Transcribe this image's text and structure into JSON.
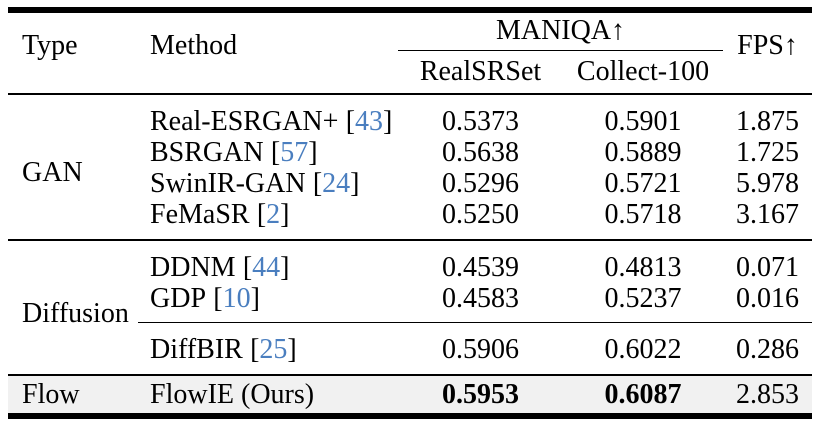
{
  "table": {
    "header": {
      "type": "Type",
      "method": "Method",
      "maniqa": "MANIQA↑",
      "realsrset": "RealSRSet",
      "collect100": "Collect-100",
      "fps": "FPS↑"
    },
    "cite_open": "[",
    "cite_close": "]",
    "colors": {
      "citation_blue": "#4a7ebf",
      "highlight_row_bg": "#f1f1f1",
      "rule_black": "#000000"
    },
    "sections": [
      {
        "type": "GAN",
        "rows": [
          {
            "method": "Real-ESRGAN+",
            "cite": "43",
            "realsrset": "0.5373",
            "collect100": "0.5901",
            "fps": "1.875"
          },
          {
            "method": "BSRGAN",
            "cite": "57",
            "realsrset": "0.5638",
            "collect100": "0.5889",
            "fps": "1.725"
          },
          {
            "method": "SwinIR-GAN",
            "cite": "24",
            "realsrset": "0.5296",
            "collect100": "0.5721",
            "fps": "5.978"
          },
          {
            "method": "FeMaSR",
            "cite": "2",
            "realsrset": "0.5250",
            "collect100": "0.5718",
            "fps": "3.167"
          }
        ]
      },
      {
        "type": "Diffusion",
        "rows": [
          {
            "method": "DDNM",
            "cite": "44",
            "realsrset": "0.4539",
            "collect100": "0.4813",
            "fps": "0.071"
          },
          {
            "method": "GDP",
            "cite": "10",
            "realsrset": "0.4583",
            "collect100": "0.5237",
            "fps": "0.016"
          },
          {
            "method": "DiffBIR",
            "cite": "25",
            "realsrset": "0.5906",
            "collect100": "0.6022",
            "fps": "0.286"
          }
        ]
      },
      {
        "type": "Flow",
        "rows": [
          {
            "method": "FlowIE (Ours)",
            "realsrset": "0.5953",
            "collect100": "0.6087",
            "fps": "2.853"
          }
        ]
      }
    ]
  }
}
